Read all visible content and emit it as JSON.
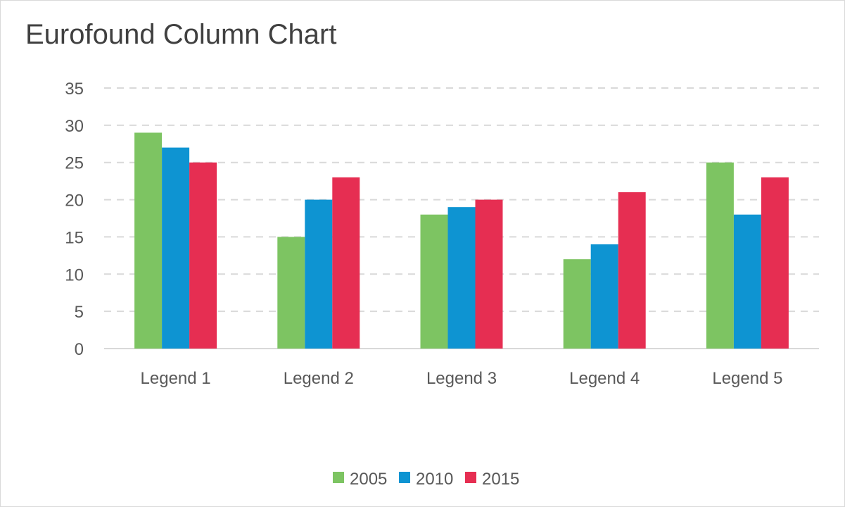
{
  "chart_data": {
    "type": "bar",
    "title": "Eurofound Column Chart",
    "categories": [
      "Legend 1",
      "Legend 2",
      "Legend 3",
      "Legend 4",
      "Legend 5"
    ],
    "series": [
      {
        "name": "2005",
        "color": "#7dc462",
        "values": [
          29,
          15,
          18,
          12,
          25
        ]
      },
      {
        "name": "2010",
        "color": "#0e94d2",
        "values": [
          27,
          20,
          19,
          14,
          18
        ]
      },
      {
        "name": "2015",
        "color": "#e62e52",
        "values": [
          25,
          23,
          20,
          21,
          23
        ]
      }
    ],
    "y_ticks": [
      "0",
      "5",
      "10",
      "15",
      "20",
      "25",
      "30",
      "35"
    ],
    "ylim": [
      0,
      35
    ],
    "grid": "horizontal dashed",
    "legend_position": "bottom-center"
  }
}
